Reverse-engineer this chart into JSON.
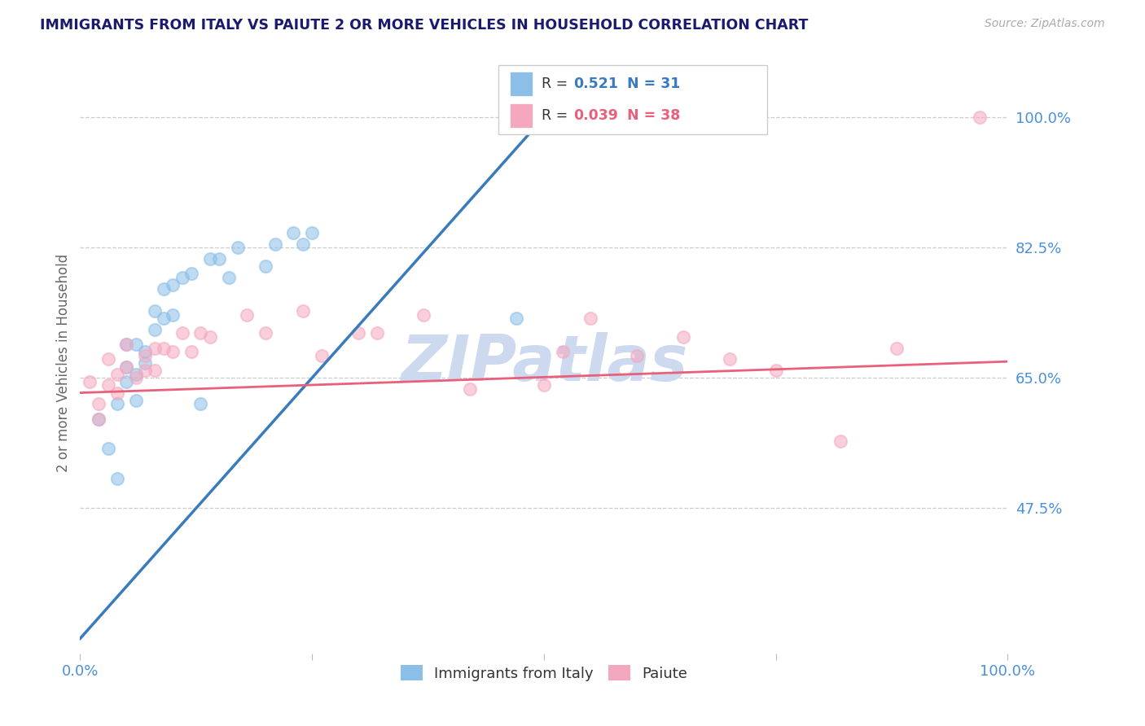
{
  "title": "IMMIGRANTS FROM ITALY VS PAIUTE 2 OR MORE VEHICLES IN HOUSEHOLD CORRELATION CHART",
  "source_text": "Source: ZipAtlas.com",
  "ylabel": "2 or more Vehicles in Household",
  "xlim": [
    0.0,
    1.0
  ],
  "ylim": [
    0.28,
    1.06
  ],
  "yticks": [
    0.475,
    0.65,
    0.825,
    1.0
  ],
  "ytick_labels": [
    "47.5%",
    "65.0%",
    "82.5%",
    "100.0%"
  ],
  "xticks": [
    0.0,
    0.25,
    0.5,
    0.75,
    1.0
  ],
  "xtick_labels": [
    "0.0%",
    "",
    "",
    "",
    "100.0%"
  ],
  "legend_label_blue": "Immigrants from Italy",
  "legend_label_pink": "Paiute",
  "blue_color": "#8bbfe8",
  "pink_color": "#f4a8be",
  "blue_line_color": "#3a7bbf",
  "pink_line_color": "#e8607a",
  "title_color": "#1a1a6e",
  "axis_label_color": "#666666",
  "tick_color": "#4a90d9",
  "grid_color": "#cccccc",
  "watermark_color": "#ccd9ee",
  "blue_x": [
    0.02,
    0.03,
    0.04,
    0.04,
    0.05,
    0.05,
    0.05,
    0.06,
    0.06,
    0.06,
    0.07,
    0.07,
    0.08,
    0.08,
    0.09,
    0.09,
    0.1,
    0.1,
    0.11,
    0.12,
    0.13,
    0.14,
    0.15,
    0.16,
    0.17,
    0.2,
    0.21,
    0.23,
    0.24,
    0.25,
    0.47
  ],
  "blue_y": [
    0.595,
    0.555,
    0.615,
    0.515,
    0.695,
    0.665,
    0.645,
    0.695,
    0.655,
    0.62,
    0.685,
    0.67,
    0.74,
    0.715,
    0.77,
    0.73,
    0.775,
    0.735,
    0.785,
    0.79,
    0.615,
    0.81,
    0.81,
    0.785,
    0.825,
    0.8,
    0.83,
    0.845,
    0.83,
    0.845,
    0.73
  ],
  "pink_x": [
    0.01,
    0.02,
    0.02,
    0.03,
    0.03,
    0.04,
    0.04,
    0.05,
    0.05,
    0.06,
    0.07,
    0.07,
    0.08,
    0.08,
    0.09,
    0.1,
    0.11,
    0.12,
    0.13,
    0.14,
    0.18,
    0.2,
    0.24,
    0.26,
    0.3,
    0.32,
    0.37,
    0.42,
    0.5,
    0.52,
    0.55,
    0.6,
    0.65,
    0.7,
    0.75,
    0.82,
    0.88,
    0.97
  ],
  "pink_y": [
    0.645,
    0.615,
    0.595,
    0.675,
    0.64,
    0.655,
    0.63,
    0.695,
    0.665,
    0.65,
    0.68,
    0.66,
    0.69,
    0.66,
    0.69,
    0.685,
    0.71,
    0.685,
    0.71,
    0.705,
    0.735,
    0.71,
    0.74,
    0.68,
    0.71,
    0.71,
    0.735,
    0.635,
    0.64,
    0.685,
    0.73,
    0.68,
    0.705,
    0.675,
    0.66,
    0.565,
    0.69,
    1.0
  ],
  "blue_line_x": [
    0.0,
    0.5
  ],
  "blue_line_y": [
    0.3,
    1.0
  ],
  "pink_line_x": [
    0.0,
    1.0
  ],
  "pink_line_y": [
    0.63,
    0.672
  ],
  "scatter_size": 120,
  "scatter_alpha": 0.55,
  "figsize": [
    14.06,
    8.92
  ],
  "dpi": 100
}
